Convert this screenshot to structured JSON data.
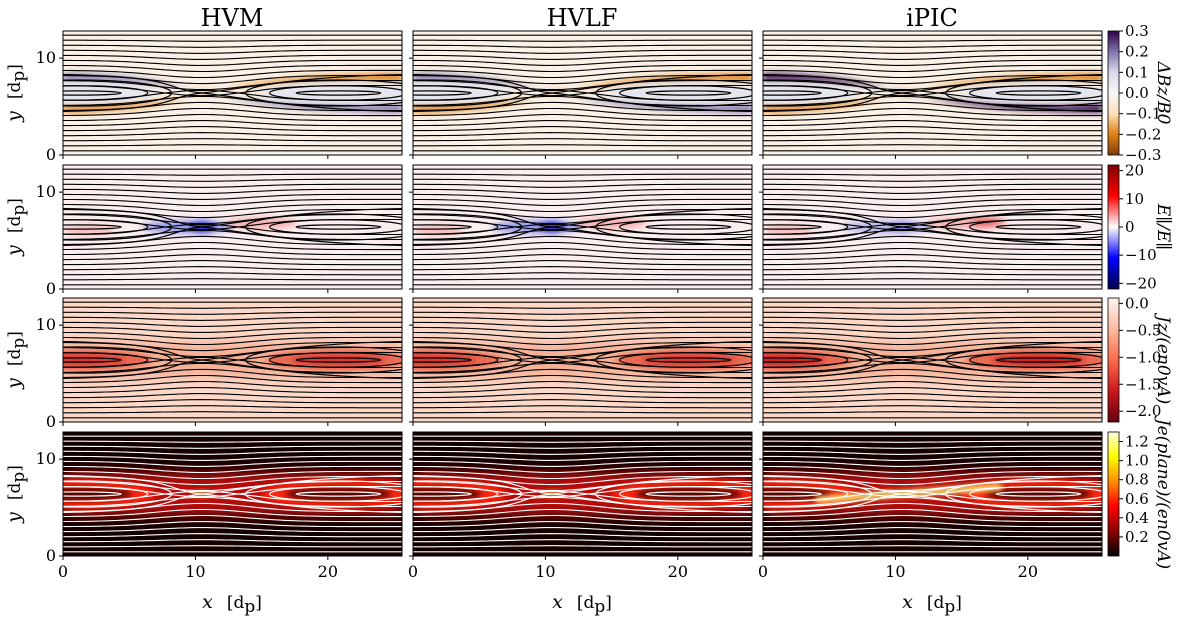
{
  "columns": [
    "HVM",
    "HVLF",
    "iPIC"
  ],
  "chart_data": {
    "type": "heatmap",
    "layout": "4 rows x 3 columns of field maps with magnetic field line contours",
    "x_axis": {
      "label": "x",
      "unit": "[d",
      "unit_sub": "p",
      "unit_close": "]",
      "range": [
        0,
        25.6
      ],
      "ticks": [
        0,
        10,
        20
      ],
      "tick_labels": [
        "0",
        "10",
        "20"
      ]
    },
    "y_axis": {
      "label": "y",
      "unit": "[d",
      "unit_sub": "p",
      "unit_close": "]",
      "range": [
        0,
        12.8
      ],
      "ticks": [
        0,
        10
      ],
      "tick_labels": [
        "0",
        "10"
      ]
    },
    "rows": [
      {
        "quantity": "ΔB_z/B_0",
        "colorbar_label": "ΔBz/B0",
        "colormap": "PuOr",
        "range": [
          -0.3,
          0.3
        ],
        "colorbar_ticks": [
          0.3,
          0.2,
          0.1,
          0.0,
          -0.1,
          -0.2,
          -0.3
        ],
        "colorbar_tick_labels": [
          "0.3",
          "0.2",
          "0.1",
          "0.0",
          "−0.1",
          "−0.2",
          "−0.3"
        ],
        "contour_color": "#000000"
      },
      {
        "quantity": "E_parallel/mean(E_parallel)",
        "colorbar_label": "E∥/E∥",
        "colormap": "seismic",
        "range": [
          -22,
          22
        ],
        "colorbar_ticks": [
          20,
          10,
          0,
          -10,
          -20
        ],
        "colorbar_tick_labels": [
          "20",
          "10",
          "0",
          "−10",
          "−20"
        ],
        "contour_color": "#000000"
      },
      {
        "quantity": "J_z/(e n_0 v_A)",
        "colorbar_label": "Jz/(en0vA)",
        "colormap": "Reds_r",
        "range": [
          -2.2,
          0.1
        ],
        "colorbar_ticks": [
          0.0,
          -0.5,
          -1.0,
          -1.5,
          -2.0
        ],
        "colorbar_tick_labels": [
          "0.0",
          "−0.5",
          "−1.0",
          "−1.5",
          "−2.0"
        ],
        "contour_color": "#000000"
      },
      {
        "quantity": "J_e^(plane)/(e n_0 v_A)",
        "colorbar_label": "Je(plane)/(en0vA)",
        "colormap": "hot",
        "range": [
          0.0,
          1.3
        ],
        "colorbar_ticks": [
          1.2,
          1.0,
          0.8,
          0.6,
          0.4,
          0.2
        ],
        "colorbar_tick_labels": [
          "1.2",
          "1.0",
          "0.8",
          "0.6",
          "0.4",
          "0.2"
        ],
        "contour_color": "#ffffff"
      }
    ]
  }
}
